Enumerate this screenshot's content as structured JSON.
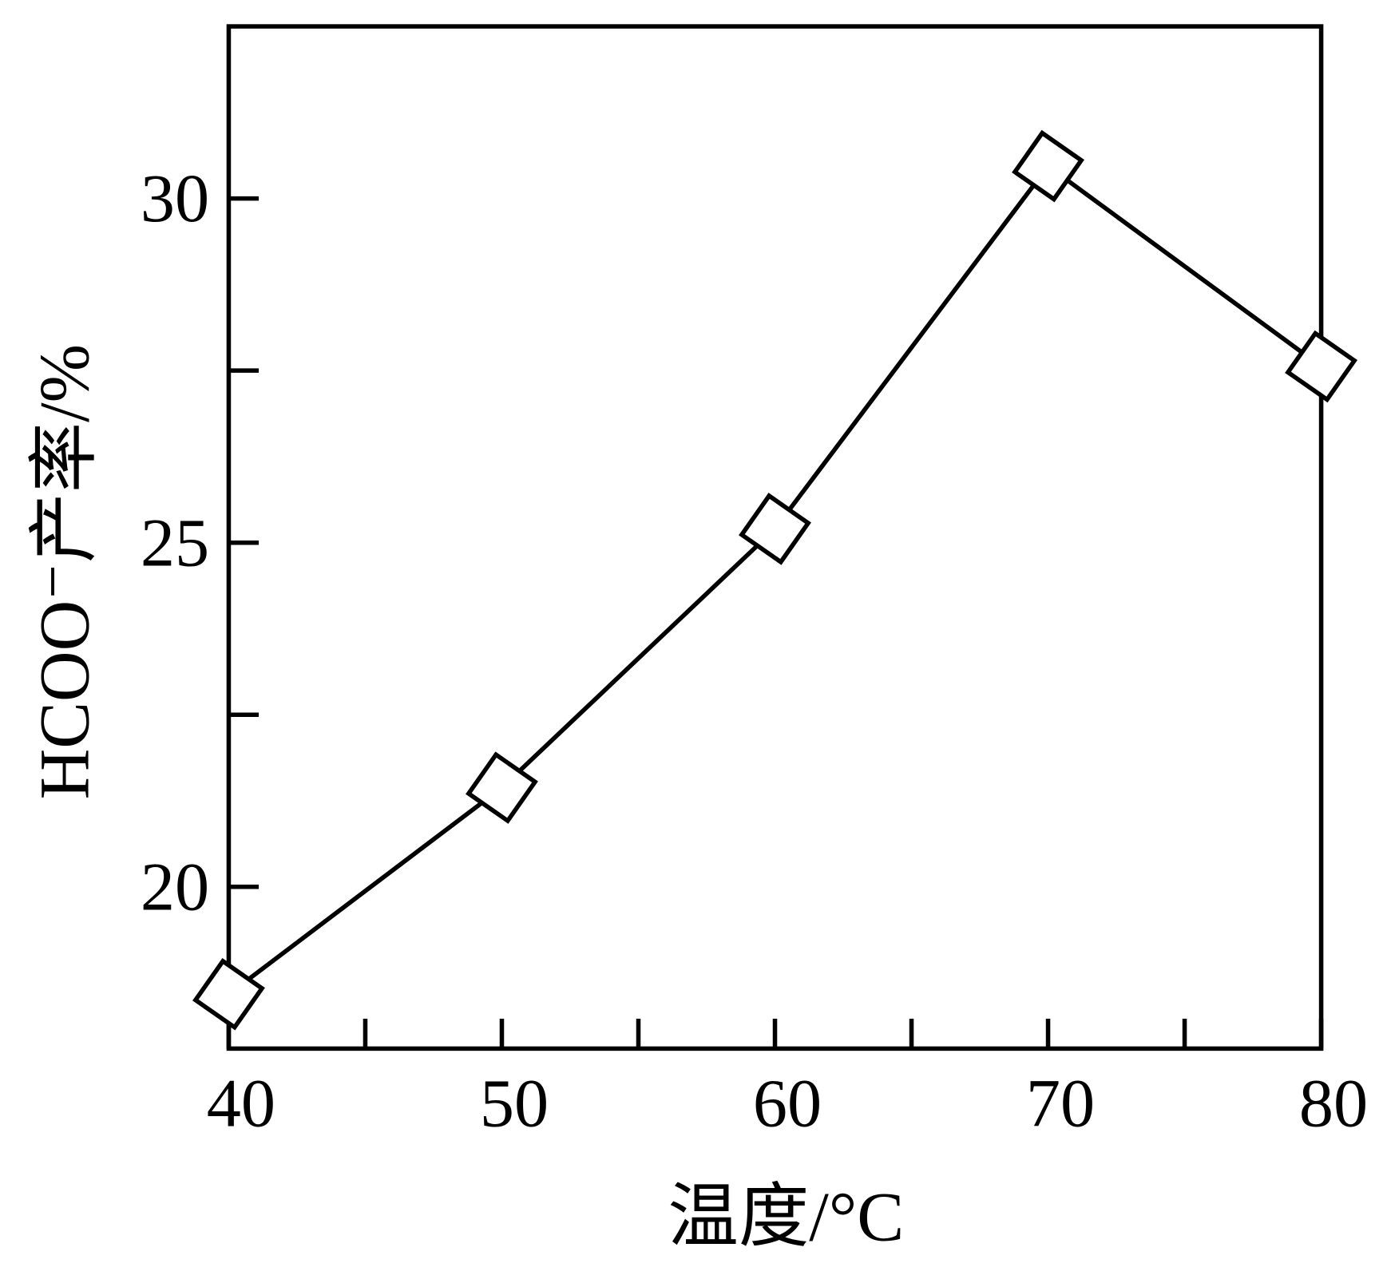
{
  "chart_data": {
    "type": "line",
    "x_label": "温度/°C",
    "y_label": "HCOO⁻产率/%",
    "x": [
      40,
      50,
      60,
      70,
      80
    ],
    "series": [
      {
        "values": [
          18.44,
          21.44,
          25.2,
          30.47,
          27.56
        ],
        "color": "#000000",
        "marker": "diamond"
      }
    ],
    "xlim": [
      40,
      80
    ],
    "xticks": [
      40,
      50,
      60,
      70,
      80
    ],
    "xticks_minor": [
      45,
      55,
      65,
      75
    ],
    "ylim": [
      17.65,
      32.5
    ],
    "yticks": [
      20,
      25,
      30
    ],
    "yticks_minor": [
      22.5,
      27.5
    ],
    "grid": false
  }
}
